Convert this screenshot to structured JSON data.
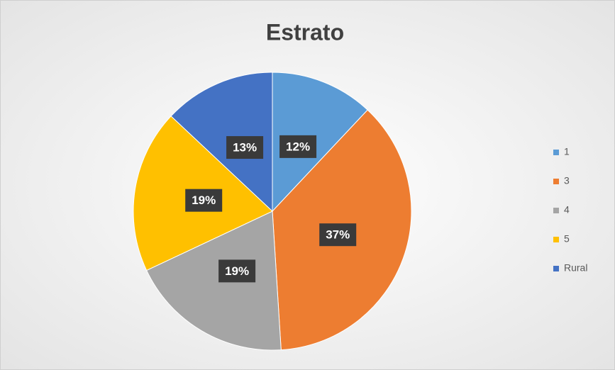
{
  "chart_data": {
    "type": "pie",
    "title": "Estrato",
    "categories": [
      "1",
      "3",
      "4",
      "5",
      "Rural"
    ],
    "values": [
      12,
      37,
      19,
      19,
      13
    ],
    "value_labels": [
      "12%",
      "37%",
      "19%",
      "19%",
      "13%"
    ],
    "colors": [
      "#5b9bd5",
      "#ed7d31",
      "#a5a5a5",
      "#ffc000",
      "#4472c4"
    ],
    "legend": "right"
  }
}
